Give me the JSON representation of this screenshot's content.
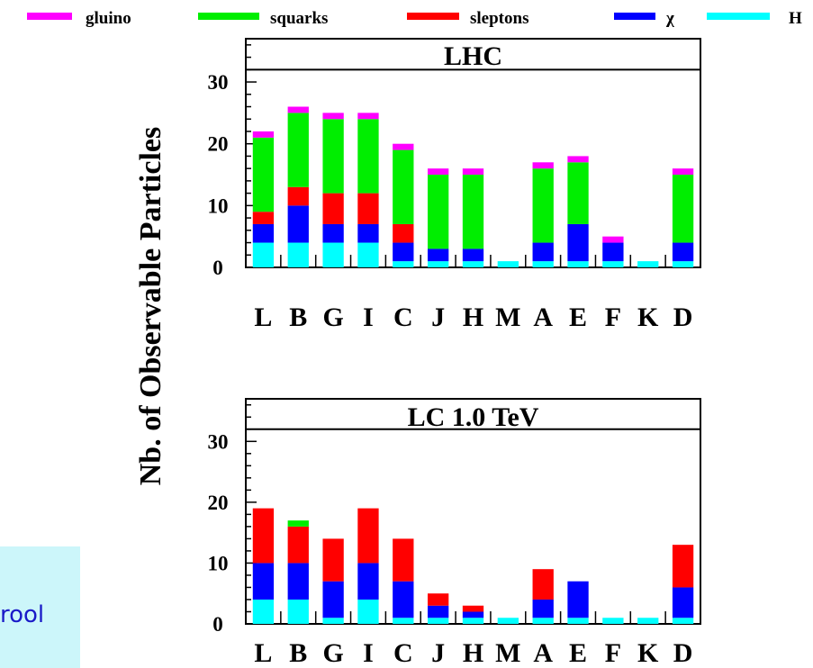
{
  "legend": [
    {
      "label": "gluino",
      "color": "#ff00ff"
    },
    {
      "label": "squarks",
      "color": "#00ee00"
    },
    {
      "label": "sleptons",
      "color": "#ff0000"
    },
    {
      "label": "χ",
      "color": "#0000ff"
    },
    {
      "label": "H",
      "color": "#00ffff"
    }
  ],
  "ylabel": "Nb. of Observable Particles",
  "side_box": {
    "text": "rool",
    "bg": "#ccf6fa",
    "text_color": "#1a1ac8"
  },
  "chart_data": [
    {
      "type": "bar",
      "stacked": true,
      "title": "LHC",
      "categories": [
        "L",
        "B",
        "G",
        "I",
        "C",
        "J",
        "H",
        "M",
        "A",
        "E",
        "F",
        "K",
        "D"
      ],
      "ylim": [
        0,
        37
      ],
      "yticks": [
        0,
        10,
        20,
        30
      ],
      "reference_line": 32,
      "series": [
        {
          "name": "H",
          "color": "#00ffff",
          "values": [
            4,
            4,
            4,
            4,
            1,
            1,
            1,
            1,
            1,
            1,
            1,
            1,
            1
          ]
        },
        {
          "name": "χ",
          "color": "#0000ff",
          "values": [
            3,
            6,
            3,
            3,
            3,
            2,
            2,
            0,
            3,
            6,
            3,
            0,
            3
          ]
        },
        {
          "name": "sleptons",
          "color": "#ff0000",
          "values": [
            2,
            3,
            5,
            5,
            3,
            0,
            0,
            0,
            0,
            0,
            0,
            0,
            0
          ]
        },
        {
          "name": "squarks",
          "color": "#00ee00",
          "values": [
            12,
            12,
            12,
            12,
            12,
            12,
            12,
            0,
            12,
            10,
            0,
            0,
            11
          ]
        },
        {
          "name": "gluino",
          "color": "#ff00ff",
          "values": [
            1,
            1,
            1,
            1,
            1,
            1,
            1,
            0,
            1,
            1,
            1,
            0,
            1
          ]
        }
      ]
    },
    {
      "type": "bar",
      "stacked": true,
      "title": "LC 1.0 TeV",
      "categories": [
        "L",
        "B",
        "G",
        "I",
        "C",
        "J",
        "H",
        "M",
        "A",
        "E",
        "F",
        "K",
        "D"
      ],
      "ylim": [
        0,
        37
      ],
      "yticks": [
        0,
        10,
        20,
        30
      ],
      "reference_line": 32,
      "series": [
        {
          "name": "H",
          "color": "#00ffff",
          "values": [
            4,
            4,
            1,
            4,
            1,
            1,
            1,
            1,
            1,
            1,
            1,
            1,
            1
          ]
        },
        {
          "name": "χ",
          "color": "#0000ff",
          "values": [
            6,
            6,
            6,
            6,
            6,
            2,
            1,
            0,
            3,
            6,
            0,
            0,
            5
          ]
        },
        {
          "name": "sleptons",
          "color": "#ff0000",
          "values": [
            9,
            6,
            7,
            9,
            7,
            2,
            1,
            0,
            5,
            0,
            0,
            0,
            7
          ]
        },
        {
          "name": "squarks",
          "color": "#00ee00",
          "values": [
            0,
            1,
            0,
            0,
            0,
            0,
            0,
            0,
            0,
            0,
            0,
            0,
            0
          ]
        },
        {
          "name": "gluino",
          "color": "#ff00ff",
          "values": [
            0,
            0,
            0,
            0,
            0,
            0,
            0,
            0,
            0,
            0,
            0,
            0,
            0
          ]
        }
      ]
    }
  ]
}
